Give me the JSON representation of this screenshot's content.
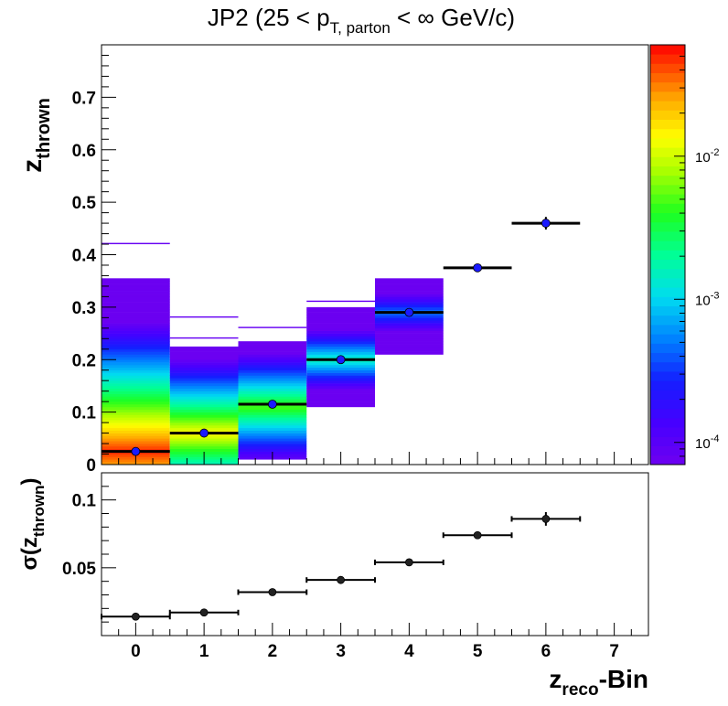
{
  "title": {
    "prefix": "JP2 (25 < p",
    "sub": "T, parton",
    "suffix": " < ∞ GeV/c)"
  },
  "colors": {
    "markers_top": "#1a1aff",
    "markers_bottom": "#222222",
    "errorbars": "#000000"
  },
  "chart_data": [
    {
      "type": "heatmap",
      "panel": "top",
      "ylabel_main": "z",
      "ylabel_sub": "thrown",
      "xlim": [
        -0.5,
        7.5
      ],
      "ylim": [
        0,
        0.8
      ],
      "yticks": [
        "0",
        "0.1",
        "0.2",
        "0.3",
        "0.4",
        "0.5",
        "0.6",
        "0.7"
      ],
      "colorbar": {
        "scale": "log",
        "range": [
          7e-05,
          0.06
        ],
        "tick_labels": [
          {
            "base": "10",
            "exp": "-4",
            "value": 0.0001
          },
          {
            "base": "10",
            "exp": "-3",
            "value": 0.001
          },
          {
            "base": "10",
            "exp": "-2",
            "value": 0.01
          }
        ]
      },
      "columns": [
        {
          "x": 0,
          "y_range": [
            0.0,
            0.355
          ],
          "peak_y": 0.025,
          "peak": 0.05,
          "falloff": 0.14,
          "outliers": [
            0.42
          ]
        },
        {
          "x": 1,
          "y_range": [
            0.0,
            0.225
          ],
          "peak_y": 0.06,
          "peak": 0.014,
          "falloff": 0.1,
          "outliers": [
            0.28,
            0.24
          ]
        },
        {
          "x": 2,
          "y_range": [
            0.01,
            0.235
          ],
          "peak_y": 0.11,
          "peak": 0.005,
          "falloff": 0.09,
          "outliers": [
            0.26
          ]
        },
        {
          "x": 3,
          "y_range": [
            0.11,
            0.3
          ],
          "peak_y": 0.2,
          "peak": 0.0016,
          "falloff": 0.07,
          "outliers": [
            0.31
          ]
        },
        {
          "x": 4,
          "y_range": [
            0.21,
            0.355
          ],
          "peak_y": 0.29,
          "peak": 0.0005,
          "falloff": 0.07,
          "outliers": []
        }
      ],
      "series": [
        {
          "x": [
            0,
            1,
            2,
            3,
            4,
            5,
            6
          ],
          "y": [
            0.025,
            0.06,
            0.115,
            0.2,
            0.29,
            0.375,
            0.46
          ],
          "yerr": [
            0.004,
            0.003,
            0.003,
            0.003,
            0.003,
            0.004,
            0.012
          ],
          "xerr": 0.5
        }
      ]
    },
    {
      "type": "scatter",
      "panel": "bottom",
      "ylabel": "σ(z",
      "ylabel_sub": "thrown",
      "ylabel_close": ")",
      "xlabel_main": "z",
      "xlabel_sub": "reco",
      "xlabel_suffix": "-Bin",
      "xlim": [
        -0.5,
        7.5
      ],
      "ylim": [
        0,
        0.12
      ],
      "xticks": [
        "0",
        "1",
        "2",
        "3",
        "4",
        "5",
        "6",
        "7"
      ],
      "yticks": [
        "0.05",
        "0.1"
      ],
      "series": [
        {
          "x": [
            0,
            1,
            2,
            3,
            4,
            5,
            6
          ],
          "y": [
            0.014,
            0.017,
            0.032,
            0.041,
            0.054,
            0.074,
            0.086
          ],
          "yerr": [
            0.001,
            0.001,
            0.001,
            0.001,
            0.0012,
            0.0015,
            0.005
          ],
          "xerr": 0.5
        }
      ]
    }
  ]
}
